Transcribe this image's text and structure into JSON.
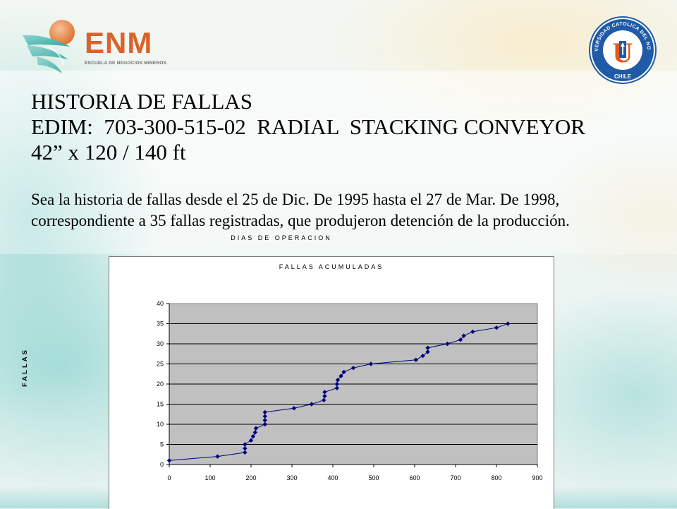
{
  "logos": {
    "enm_text": "ENM",
    "enm_subtitle": "ESCUELA DE NEGOCIOS MINEROS",
    "ucn_seal_text_top": "UNIVERSIDAD CATOLICA DEL NORTE",
    "ucn_seal_text_bottom": "CHILE",
    "ucn_seal_letter": "U"
  },
  "title": {
    "line1": "HISTORIA DE FALLAS",
    "line2": "EDIM:  703-300-515-02  RADIAL  STACKING CONVEYOR",
    "line3": "42” x 120 / 140 ft"
  },
  "intro": {
    "line1": "Sea la historia de fallas desde el 25 de Dic. De 1995  hasta el 27 de Mar. De 1998,",
    "line2": "correspondiente a 35 fallas registradas, que produjeron detención de la producción."
  },
  "colors": {
    "plot_background": "#c0c0c0",
    "series": "#000080",
    "enm_orange": "#d9632a",
    "ucn_blue": "#1f5aa6",
    "ucn_orange": "#e05a1c"
  },
  "chart_data": {
    "type": "line",
    "title": "FALLAS ACUMULADAS",
    "xlabel": "DIAS DE OPERACION",
    "ylabel": "FALLAS",
    "xlim": [
      0,
      900
    ],
    "ylim": [
      0,
      40
    ],
    "xticks": [
      0,
      100,
      200,
      300,
      400,
      500,
      600,
      700,
      800,
      900
    ],
    "yticks": [
      0,
      5,
      10,
      15,
      20,
      25,
      30,
      35,
      40
    ],
    "grid": "horizontal",
    "legend": "none",
    "marker": "diamond",
    "series": [
      {
        "points": [
          [
            0,
            1
          ],
          [
            118,
            2
          ],
          [
            185,
            3
          ],
          [
            185,
            4
          ],
          [
            185,
            5
          ],
          [
            200,
            6
          ],
          [
            205,
            7
          ],
          [
            210,
            8
          ],
          [
            212,
            9
          ],
          [
            234,
            10
          ],
          [
            234,
            11
          ],
          [
            234,
            12
          ],
          [
            234,
            13
          ],
          [
            305,
            14
          ],
          [
            348,
            15
          ],
          [
            378,
            16
          ],
          [
            380,
            17
          ],
          [
            380,
            18
          ],
          [
            410,
            19
          ],
          [
            410,
            20
          ],
          [
            412,
            21
          ],
          [
            420,
            22
          ],
          [
            427,
            23
          ],
          [
            450,
            24
          ],
          [
            493,
            25
          ],
          [
            603,
            26
          ],
          [
            620,
            27
          ],
          [
            632,
            28
          ],
          [
            632,
            29
          ],
          [
            680,
            30
          ],
          [
            712,
            31
          ],
          [
            720,
            32
          ],
          [
            742,
            33
          ],
          [
            800,
            34
          ],
          [
            828,
            35
          ]
        ]
      }
    ]
  }
}
